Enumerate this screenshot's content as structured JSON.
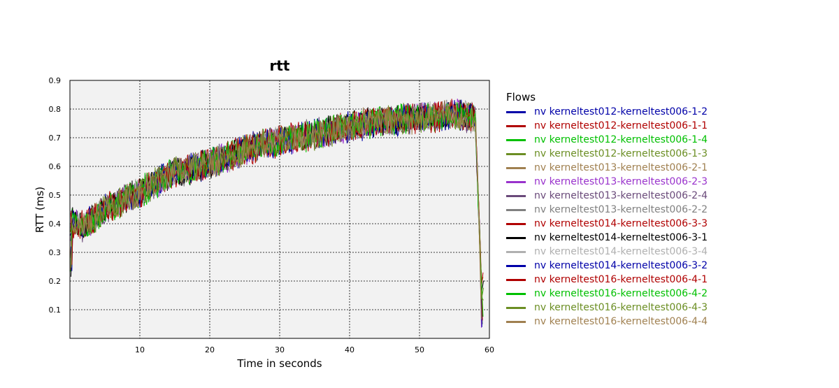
{
  "chart_data": {
    "type": "line",
    "title": "rtt",
    "xlabel": "Time in seconds",
    "ylabel": "RTT (ms)",
    "xlim": [
      0,
      60
    ],
    "ylim": [
      0,
      0.9
    ],
    "xticks": [
      "10",
      "20",
      "30",
      "40",
      "50",
      "60"
    ],
    "yticks": [
      "0.1",
      "0.2",
      "0.3",
      "0.4",
      "0.5",
      "0.6",
      "0.7",
      "0.8",
      "0.9"
    ],
    "grid": true,
    "legend_title": "Flows",
    "legend_position": "right",
    "trend": {
      "x": [
        0,
        2,
        5,
        10,
        15,
        20,
        25,
        30,
        35,
        40,
        45,
        50,
        55,
        58,
        58.6,
        59
      ],
      "y": [
        0.41,
        0.39,
        0.45,
        0.51,
        0.58,
        0.61,
        0.66,
        0.69,
        0.71,
        0.74,
        0.76,
        0.77,
        0.78,
        0.77,
        0.35,
        0.05
      ]
    },
    "series": [
      {
        "name": "nv kerneltest012-kerneltest006-1-2",
        "color": "#0000a8"
      },
      {
        "name": "nv kerneltest012-kerneltest006-1-1",
        "color": "#b00000"
      },
      {
        "name": "nv kerneltest012-kerneltest006-1-4",
        "color": "#00c000"
      },
      {
        "name": "nv kerneltest012-kerneltest006-1-3",
        "color": "#6b8e23"
      },
      {
        "name": "nv kerneltest013-kerneltest006-2-1",
        "color": "#a08050"
      },
      {
        "name": "nv kerneltest013-kerneltest006-2-3",
        "color": "#9932cc"
      },
      {
        "name": "nv kerneltest013-kerneltest006-2-4",
        "color": "#6a4a7a"
      },
      {
        "name": "nv kerneltest013-kerneltest006-2-2",
        "color": "#808080"
      },
      {
        "name": "nv kerneltest014-kerneltest006-3-3",
        "color": "#b00000"
      },
      {
        "name": "nv kerneltest014-kerneltest006-3-1",
        "color": "#000000"
      },
      {
        "name": "nv kerneltest014-kerneltest006-3-4",
        "color": "#b0b0b0"
      },
      {
        "name": "nv kerneltest014-kerneltest006-3-2",
        "color": "#0000a8"
      },
      {
        "name": "nv kerneltest016-kerneltest006-4-1",
        "color": "#b00000"
      },
      {
        "name": "nv kerneltest016-kerneltest006-4-2",
        "color": "#00c000"
      },
      {
        "name": "nv kerneltest016-kerneltest006-4-3",
        "color": "#6b8e23"
      },
      {
        "name": "nv kerneltest016-kerneltest006-4-4",
        "color": "#a08050"
      }
    ]
  }
}
